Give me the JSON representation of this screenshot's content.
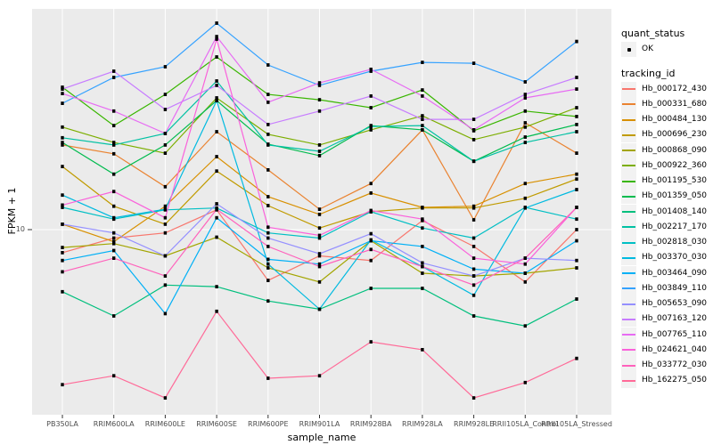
{
  "chart_data": {
    "type": "line",
    "title": "",
    "xlabel": "sample_name",
    "ylabel": "FPKM + 1",
    "y_scale": "log10",
    "y_axis_ticks": [
      10
    ],
    "grid": "white-on-gray",
    "legend_position": "right",
    "categories": [
      "PB350LA",
      "RRIM600LA",
      "RRIM600LE",
      "RRIM600SE",
      "RRIM600PE",
      "RRIM901LA",
      "RRIM928BA",
      "RRIM928LA",
      "RRIM928LE",
      "RRII105LA_Control",
      "RRII105LA_Stressed"
    ],
    "series": [
      {
        "name": "Hb_000172_430",
        "color": "#F8766D",
        "quant_status": "OK",
        "values": [
          7.5,
          9.0,
          9.6,
          12.8,
          5.3,
          7.2,
          6.8,
          11.2,
          8.1,
          5.2,
          10.0
        ]
      },
      {
        "name": "Hb_000331_680",
        "color": "#EA8331",
        "quant_status": "OK",
        "values": [
          28.8,
          25.8,
          17.1,
          34.0,
          21.1,
          12.9,
          17.8,
          34.8,
          11.3,
          38.0,
          26.0
        ]
      },
      {
        "name": "Hb_000484_130",
        "color": "#D89000",
        "quant_status": "OK",
        "values": [
          10.7,
          8.6,
          13.4,
          24.9,
          15.1,
          12.1,
          15.8,
          13.2,
          13.4,
          17.8,
          20.0
        ]
      },
      {
        "name": "Hb_000696_230",
        "color": "#C09B00",
        "quant_status": "OK",
        "values": [
          22.0,
          13.4,
          10.7,
          20.8,
          13.5,
          10.2,
          12.5,
          13.1,
          13.1,
          14.8,
          18.8
        ]
      },
      {
        "name": "Hb_000868_090",
        "color": "#A3A500",
        "quant_status": "OK",
        "values": [
          8.0,
          8.4,
          7.2,
          9.1,
          6.2,
          5.2,
          8.7,
          5.8,
          5.6,
          5.8,
          6.2
        ]
      },
      {
        "name": "Hb_000922_360",
        "color": "#7CAE00",
        "quant_status": "OK",
        "values": [
          36.0,
          29.7,
          26.0,
          51.9,
          32.9,
          28.8,
          34.8,
          41.5,
          30.8,
          36.0,
          45.9
        ]
      },
      {
        "name": "Hb_001195_530",
        "color": "#39B600",
        "quant_status": "OK",
        "values": [
          59.3,
          36.7,
          54.2,
          86.5,
          54.2,
          50.7,
          45.9,
          57.3,
          34.4,
          44.0,
          41.1
        ]
      },
      {
        "name": "Hb_001359_050",
        "color": "#00BB4E",
        "quant_status": "OK",
        "values": [
          29.7,
          20.0,
          28.8,
          50.1,
          29.1,
          25.2,
          36.7,
          34.8,
          23.5,
          31.8,
          37.2
        ]
      },
      {
        "name": "Hb_001408_140",
        "color": "#00BF7D",
        "quant_status": "OK",
        "values": [
          4.6,
          3.4,
          5.0,
          4.9,
          4.1,
          3.7,
          4.8,
          4.8,
          3.4,
          3.0,
          4.2
        ]
      },
      {
        "name": "Hb_002217_170",
        "color": "#00C1A3",
        "quant_status": "OK",
        "values": [
          31.5,
          28.8,
          33.3,
          64.1,
          28.8,
          26.6,
          36.3,
          36.7,
          23.5,
          29.7,
          34.0
        ]
      },
      {
        "name": "Hb_002818_030",
        "color": "#00BFC4",
        "quant_status": "OK",
        "values": [
          13.2,
          11.4,
          12.8,
          13.1,
          9.6,
          9.0,
          12.5,
          10.2,
          9.0,
          13.2,
          11.4
        ]
      },
      {
        "name": "Hb_003370_030",
        "color": "#00BAE0",
        "quant_status": "OK",
        "values": [
          15.4,
          11.6,
          12.9,
          50.1,
          6.5,
          3.7,
          8.8,
          6.3,
          4.4,
          13.1,
          16.5
        ]
      },
      {
        "name": "Hb_003464_090",
        "color": "#00B0F6",
        "quant_status": "OK",
        "values": [
          6.8,
          7.7,
          3.5,
          11.6,
          6.9,
          6.5,
          8.7,
          8.1,
          6.1,
          5.8,
          8.7
        ]
      },
      {
        "name": "Hb_003849_110",
        "color": "#35A2FF",
        "quant_status": "OK",
        "values": [
          48.5,
          67.0,
          76.6,
          132.0,
          78.3,
          60.7,
          72.4,
          80.9,
          80.0,
          63.4,
          105.0
        ]
      },
      {
        "name": "Hb_005653_090",
        "color": "#9590FF",
        "quant_status": "OK",
        "values": [
          10.7,
          9.6,
          7.2,
          13.8,
          9.0,
          7.4,
          9.5,
          6.6,
          5.6,
          7.0,
          6.8
        ]
      },
      {
        "name": "Hb_007163_120",
        "color": "#C77CFF",
        "quant_status": "OK",
        "values": [
          57.9,
          72.4,
          44.9,
          60.7,
          37.2,
          44.0,
          53.1,
          39.7,
          39.7,
          54.2,
          67.0
        ]
      },
      {
        "name": "Hb_007765_110",
        "color": "#E76BF3",
        "quant_status": "OK",
        "values": [
          54.8,
          44.0,
          33.3,
          111.7,
          49.1,
          62.6,
          74.1,
          53.1,
          34.8,
          51.9,
          57.9
        ]
      },
      {
        "name": "Hb_024621_040",
        "color": "#FA62DB",
        "quant_status": "OK",
        "values": [
          13.6,
          16.1,
          11.6,
          108.1,
          10.3,
          9.3,
          12.7,
          11.4,
          7.0,
          6.5,
          13.2
        ]
      },
      {
        "name": "Hb_033772_030",
        "color": "#FF62BC",
        "quant_status": "OK",
        "values": [
          5.9,
          7.0,
          5.6,
          12.9,
          8.1,
          6.3,
          7.8,
          6.3,
          5.0,
          7.0,
          13.2
        ]
      },
      {
        "name": "Hb_162275_050",
        "color": "#FF6A98",
        "quant_status": "OK",
        "values": [
          1.44,
          1.61,
          1.22,
          3.6,
          1.56,
          1.61,
          2.46,
          2.23,
          1.22,
          1.48,
          2.0
        ]
      }
    ]
  },
  "legend": {
    "quant_status_title": "quant_status",
    "quant_status_items": [
      "OK"
    ],
    "tracking_id_title": "tracking_id"
  },
  "style": {
    "panel_bg": "#EBEBEB",
    "grid_color": "#FFFFFF",
    "point_color": "#000000",
    "tick_label_color": "#4D4D4D",
    "legend_key_bg": "#F2F2F2"
  }
}
